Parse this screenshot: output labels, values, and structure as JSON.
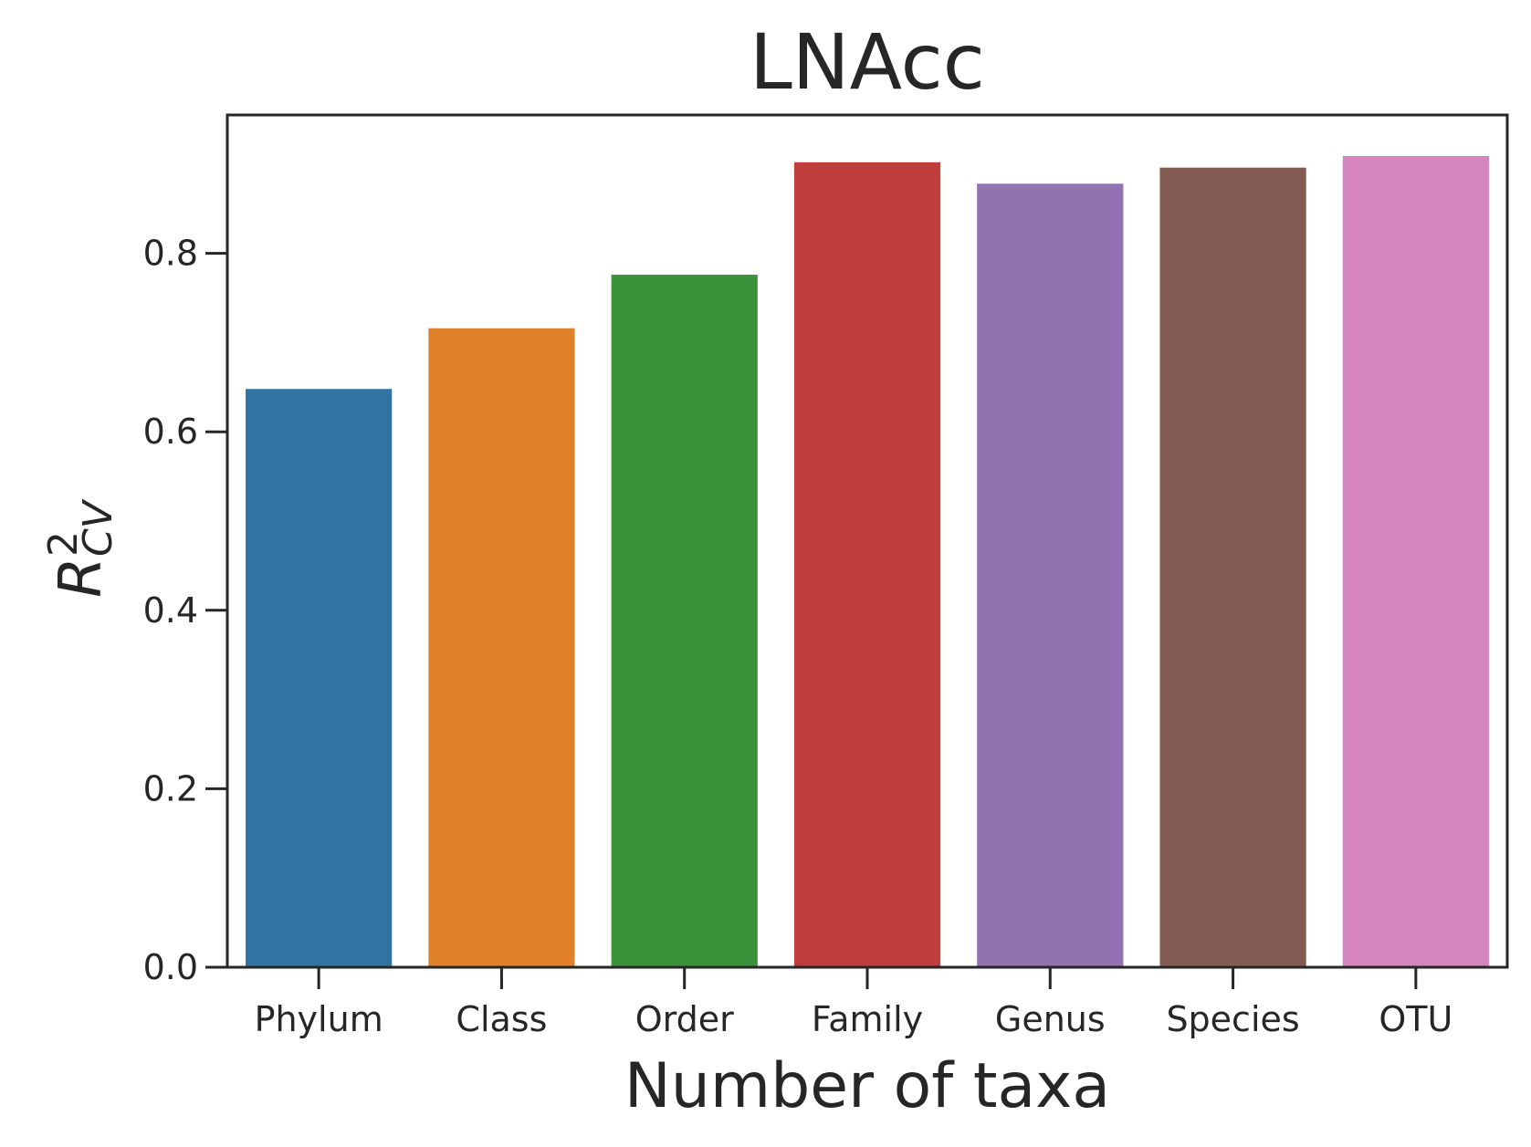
{
  "chart_data": {
    "type": "bar",
    "title": "LNAcc",
    "xlabel": "Number of taxa",
    "ylabel": "R",
    "ylabel_superscript": "2",
    "ylabel_subscript": "CV",
    "categories": [
      "Phylum",
      "Class",
      "Order",
      "Family",
      "Genus",
      "Species",
      "OTU"
    ],
    "values": [
      0.648,
      0.716,
      0.776,
      0.902,
      0.878,
      0.896,
      0.909
    ],
    "colors": [
      "#3274a1",
      "#e1812c",
      "#3a923a",
      "#c03d3e",
      "#9372b2",
      "#845b53",
      "#d684bd"
    ],
    "ylim": [
      0,
      0.955
    ],
    "yticks": [
      0.0,
      0.2,
      0.4,
      0.6,
      0.8
    ],
    "ytick_labels": [
      "0.0",
      "0.2",
      "0.4",
      "0.6",
      "0.8"
    ],
    "grid": false
  }
}
